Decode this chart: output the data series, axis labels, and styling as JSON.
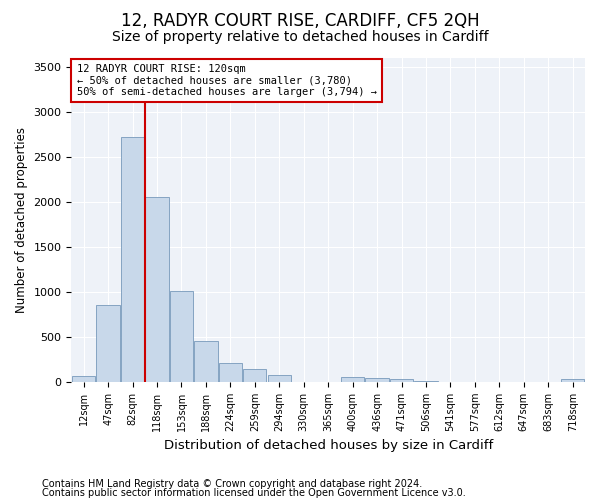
{
  "title1": "12, RADYR COURT RISE, CARDIFF, CF5 2QH",
  "title2": "Size of property relative to detached houses in Cardiff",
  "xlabel": "Distribution of detached houses by size in Cardiff",
  "ylabel": "Number of detached properties",
  "categories": [
    "12sqm",
    "47sqm",
    "82sqm",
    "118sqm",
    "153sqm",
    "188sqm",
    "224sqm",
    "259sqm",
    "294sqm",
    "330sqm",
    "365sqm",
    "400sqm",
    "436sqm",
    "471sqm",
    "506sqm",
    "541sqm",
    "577sqm",
    "612sqm",
    "647sqm",
    "683sqm",
    "718sqm"
  ],
  "values": [
    65,
    850,
    2720,
    2050,
    1010,
    450,
    210,
    145,
    80,
    0,
    0,
    55,
    45,
    35,
    5,
    0,
    0,
    0,
    0,
    0,
    30
  ],
  "bar_color": "#c8d8ea",
  "bar_edge_color": "#7799bb",
  "annotation_text": "12 RADYR COURT RISE: 120sqm\n← 50% of detached houses are smaller (3,780)\n50% of semi-detached houses are larger (3,794) →",
  "annotation_box_color": "#ffffff",
  "annotation_box_edge": "#cc0000",
  "redline_color": "#cc0000",
  "footnote1": "Contains HM Land Registry data © Crown copyright and database right 2024.",
  "footnote2": "Contains public sector information licensed under the Open Government Licence v3.0.",
  "ylim": [
    0,
    3600
  ],
  "yticks": [
    0,
    500,
    1000,
    1500,
    2000,
    2500,
    3000,
    3500
  ],
  "title1_fontsize": 12,
  "title2_fontsize": 10,
  "xlabel_fontsize": 9.5,
  "ylabel_fontsize": 8.5,
  "footnote_fontsize": 7,
  "bg_color": "#eef2f8",
  "grid_color": "#ffffff"
}
